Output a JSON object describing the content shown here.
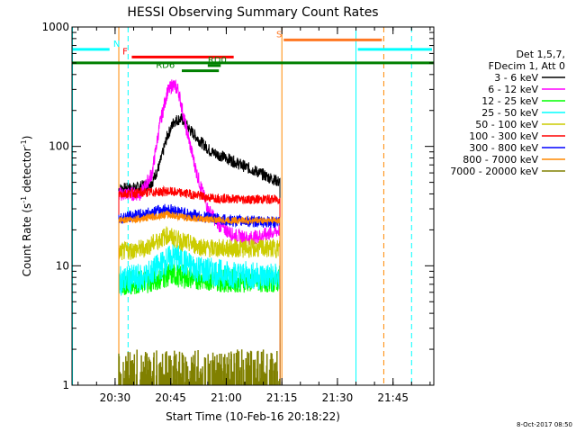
{
  "chart_data": {
    "type": "line",
    "title": "HESSI Observing Summary Count Rates",
    "xlabel": "Start Time (10-Feb-16 20:18:22)",
    "ylabel": "Count Rate (s",
    "ylabel_sup1": "-1",
    "ylabel_mid": " detector",
    "ylabel_sup2": "-1",
    "ylabel_end": ")",
    "y_scale": "log",
    "ylim": [
      1,
      1000
    ],
    "xlim": [
      "20:18:22",
      "21:56:00"
    ],
    "x_ticks": [
      "20:30",
      "20:45",
      "21:00",
      "21:15",
      "21:30",
      "21:45"
    ],
    "y_ticks": [
      "1",
      "10",
      "100",
      "1000"
    ],
    "timestamp": "8-Oct-2017 08:50",
    "legend": {
      "header": [
        "Det 1,5,7,",
        "FDecim 1, Att 0"
      ],
      "entries": [
        {
          "label": "3 - 6 keV",
          "color": "#000000"
        },
        {
          "label": "6 - 12 keV",
          "color": "#ff00ff"
        },
        {
          "label": "12 - 25 keV",
          "color": "#00ff00"
        },
        {
          "label": "25 - 50 keV",
          "color": "#00ffff"
        },
        {
          "label": "50 - 100 keV",
          "color": "#cccc00"
        },
        {
          "label": "100 - 300 keV",
          "color": "#ff0000"
        },
        {
          "label": "300 - 800 keV",
          "color": "#0000ff"
        },
        {
          "label": "800 - 7000 keV",
          "color": "#ff8800"
        },
        {
          "label": "7000 - 20000 keV",
          "color": "#808000"
        }
      ]
    },
    "series": [
      {
        "name": "3 - 6 keV",
        "color": "#000000",
        "noise": 0.05,
        "points": [
          [
            "20:31:00",
            44
          ],
          [
            "20:36:00",
            45
          ],
          [
            "20:40:00",
            50
          ],
          [
            "20:42:00",
            70
          ],
          [
            "20:44:00",
            120
          ],
          [
            "20:46:00",
            165
          ],
          [
            "20:48:00",
            170
          ],
          [
            "20:50:00",
            140
          ],
          [
            "20:53:00",
            110
          ],
          [
            "20:56:00",
            90
          ],
          [
            "21:00:00",
            80
          ],
          [
            "21:04:00",
            70
          ],
          [
            "21:08:00",
            62
          ],
          [
            "21:11:00",
            56
          ],
          [
            "21:14:30",
            50
          ]
        ]
      },
      {
        "name": "6 - 12 keV",
        "color": "#ff00ff",
        "noise": 0.06,
        "points": [
          [
            "20:31:00",
            40
          ],
          [
            "20:37:00",
            40
          ],
          [
            "20:40:00",
            60
          ],
          [
            "20:42:00",
            150
          ],
          [
            "20:44:00",
            280
          ],
          [
            "20:45:30",
            330
          ],
          [
            "20:47:00",
            300
          ],
          [
            "20:49:00",
            150
          ],
          [
            "20:52:00",
            60
          ],
          [
            "20:55:00",
            30
          ],
          [
            "20:58:00",
            22
          ],
          [
            "21:02:00",
            18
          ],
          [
            "21:06:00",
            17
          ],
          [
            "21:10:00",
            18
          ],
          [
            "21:14:30",
            20
          ]
        ]
      },
      {
        "name": "12 - 25 keV",
        "color": "#00ff00",
        "noise": 0.1,
        "points": [
          [
            "20:31:00",
            7
          ],
          [
            "20:40:00",
            7.5
          ],
          [
            "20:45:00",
            8.5
          ],
          [
            "20:50:00",
            8
          ],
          [
            "21:00:00",
            7.5
          ],
          [
            "21:14:30",
            7.5
          ]
        ]
      },
      {
        "name": "25 - 50 keV",
        "color": "#00ffff",
        "noise": 0.12,
        "points": [
          [
            "20:31:00",
            7.5
          ],
          [
            "20:38:00",
            8
          ],
          [
            "20:44:00",
            11
          ],
          [
            "20:46:00",
            12
          ],
          [
            "20:50:00",
            10
          ],
          [
            "20:55:00",
            9
          ],
          [
            "21:00:00",
            8.5
          ],
          [
            "21:14:30",
            8
          ]
        ]
      },
      {
        "name": "50 - 100 keV",
        "color": "#cccc00",
        "noise": 0.08,
        "points": [
          [
            "20:31:00",
            13
          ],
          [
            "20:38:00",
            14
          ],
          [
            "20:44:00",
            18
          ],
          [
            "20:48:00",
            16
          ],
          [
            "20:55:00",
            14
          ],
          [
            "21:05:00",
            14
          ],
          [
            "21:14:30",
            14
          ]
        ]
      },
      {
        "name": "100 - 300 keV",
        "color": "#ff0000",
        "noise": 0.04,
        "points": [
          [
            "20:31:00",
            40
          ],
          [
            "20:38:00",
            41
          ],
          [
            "20:44:00",
            42
          ],
          [
            "20:50:00",
            40
          ],
          [
            "20:56:00",
            37
          ],
          [
            "21:05:00",
            36
          ],
          [
            "21:14:30",
            36
          ]
        ]
      },
      {
        "name": "300 - 800 keV",
        "color": "#0000ff",
        "noise": 0.05,
        "points": [
          [
            "20:31:00",
            25
          ],
          [
            "20:38:00",
            27
          ],
          [
            "20:44:00",
            30
          ],
          [
            "20:50:00",
            27
          ],
          [
            "21:00:00",
            24
          ],
          [
            "21:14:30",
            23
          ]
        ]
      },
      {
        "name": "800 - 7000 keV",
        "color": "#ff8800",
        "noise": 0.03,
        "points": [
          [
            "20:31:00",
            24
          ],
          [
            "20:38:00",
            25
          ],
          [
            "20:44:00",
            27
          ],
          [
            "20:50:00",
            25
          ],
          [
            "21:00:00",
            24
          ],
          [
            "21:14:30",
            24
          ]
        ]
      },
      {
        "name": "7000 - 20000 keV",
        "color": "#808000",
        "noise": 0.0,
        "points": [
          [
            "20:31:00",
            1.8
          ],
          [
            "21:14:30",
            1.8
          ]
        ]
      }
    ],
    "flag_bars": [
      {
        "label": "N",
        "color": "#00ffff",
        "start": "20:18:22",
        "end": "20:28:30",
        "level": 650,
        "label_at": "20:29:30"
      },
      {
        "label": "",
        "color": "#00ffff",
        "start": "21:35:30",
        "end": "21:55:30",
        "level": 650,
        "label_at": ""
      },
      {
        "label": "F",
        "color": "#ff0000",
        "start": "20:34:30",
        "end": "21:02:00",
        "level": 560,
        "label_at": "20:32:00"
      },
      {
        "label": "RD0",
        "color": "#008000",
        "start": "20:55:00",
        "end": "20:58:30",
        "level": 475,
        "label_at": "20:55:00"
      },
      {
        "label": "RD6",
        "color": "#008000",
        "start": "20:48:00",
        "end": "20:58:00",
        "level": 430,
        "label_at": "20:41:00"
      },
      {
        "label": "S",
        "color": "#ff7722",
        "start": "21:15:30",
        "end": "21:42:00",
        "level": 780,
        "label_at": "21:13:30"
      },
      {
        "label": "",
        "color": "#008000",
        "start": "20:18:22",
        "end": "21:56:00",
        "level": 500,
        "label_at": ""
      }
    ],
    "vertical_lines": [
      {
        "time": "20:18:30",
        "color": "#00ffff",
        "style": "solid"
      },
      {
        "time": "20:31:00",
        "color": "#ff8800",
        "style": "solid"
      },
      {
        "time": "20:33:30",
        "color": "#00ffff",
        "style": "dashed"
      },
      {
        "time": "21:15:00",
        "color": "#ff8800",
        "style": "solid"
      },
      {
        "time": "21:35:00",
        "color": "#00ffff",
        "style": "solid"
      },
      {
        "time": "21:42:30",
        "color": "#ff8800",
        "style": "dashed"
      },
      {
        "time": "21:50:00",
        "color": "#00ffff",
        "style": "dashed"
      }
    ]
  }
}
